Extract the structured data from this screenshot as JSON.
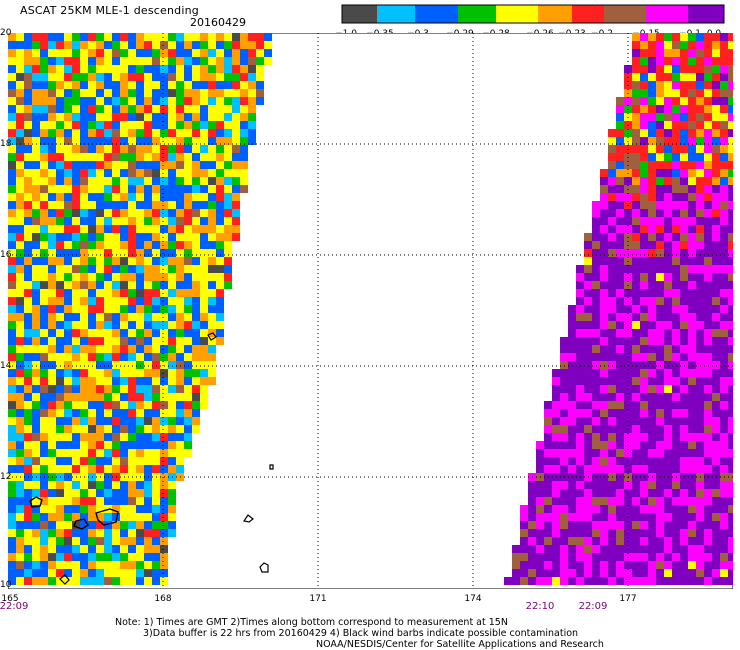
{
  "header": {
    "title": "ASCAT 25KM MLE-1 descending",
    "date": "20160429"
  },
  "legend": {
    "colors": [
      "#4a4a4a",
      "#00c0ff",
      "#0060ff",
      "#00c000",
      "#ffff00",
      "#ffa000",
      "#ff2020",
      "#a06040",
      "#ff00ff",
      "#8000c0"
    ],
    "labels": [
      "−1.0",
      "−0.35",
      "−0.3",
      "−0.29",
      "−0.28",
      "−0.26",
      "−0.23",
      "−0.2",
      "−0.15",
      "−0.1",
      "0.0"
    ]
  },
  "map": {
    "lat_labels": [
      "20",
      "18",
      "16",
      "14",
      "12",
      "10"
    ],
    "lon_labels": [
      "165",
      "168",
      "171",
      "174",
      "177"
    ],
    "times": [
      "22:09",
      "22:10",
      "22:09"
    ]
  },
  "notes": {
    "line1": "Note: 1) Times are GMT 2)Times along bottom correspond to measurement at 15N",
    "line2": "3)Data buffer is 22 hrs from 20160429 4) Black wind barbs indicate possible contamination",
    "line3": "NOAA/NESDIS/Center for Satellite Applications and Research"
  }
}
